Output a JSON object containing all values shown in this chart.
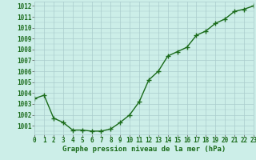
{
  "x": [
    0,
    1,
    2,
    3,
    4,
    5,
    6,
    7,
    8,
    9,
    10,
    11,
    12,
    13,
    14,
    15,
    16,
    17,
    18,
    19,
    20,
    21,
    22,
    23
  ],
  "y": [
    1003.5,
    1003.8,
    1001.7,
    1001.3,
    1000.6,
    1000.6,
    1000.5,
    1000.5,
    1000.7,
    1001.3,
    1002.0,
    1003.2,
    1005.2,
    1006.0,
    1007.4,
    1007.8,
    1008.2,
    1009.3,
    1009.7,
    1010.4,
    1010.8,
    1011.5,
    1011.7,
    1012.0
  ],
  "ylim": [
    1000.2,
    1012.4
  ],
  "yticks": [
    1001,
    1002,
    1003,
    1004,
    1005,
    1006,
    1007,
    1008,
    1009,
    1010,
    1011,
    1012
  ],
  "xlim": [
    0,
    23
  ],
  "xticks": [
    0,
    1,
    2,
    3,
    4,
    5,
    6,
    7,
    8,
    9,
    10,
    11,
    12,
    13,
    14,
    15,
    16,
    17,
    18,
    19,
    20,
    21,
    22,
    23
  ],
  "xlabel": "Graphe pression niveau de la mer (hPa)",
  "line_color": "#1a6b1a",
  "marker": "+",
  "marker_color": "#1a6b1a",
  "bg_color": "#cceee8",
  "grid_color": "#aacccc",
  "tick_label_color": "#1a6b1a",
  "xlabel_color": "#1a6b1a",
  "xlabel_fontsize": 6.5,
  "tick_fontsize": 5.5,
  "linewidth": 1.0,
  "markersize": 4,
  "markerwidth": 1.0
}
